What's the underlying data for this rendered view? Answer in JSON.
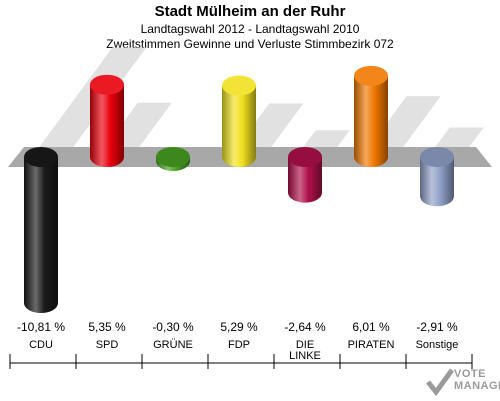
{
  "title": "Stadt Mülheim an der Ruhr",
  "subtitle1": "Landtagswahl 2012 - Landtagswahl 2010",
  "subtitle2": "Zweitstimmen Gewinne und Verluste Stimmbezirk 072",
  "logo": {
    "line1": "VOTE",
    "line2": "MANAGER"
  },
  "chart_data": {
    "type": "bar",
    "title": "Stadt Mülheim an der Ruhr",
    "categories": [
      "CDU",
      "SPD",
      "GRÜNE",
      "FDP",
      "DIE LINKE",
      "PIRATEN",
      "Sonstige"
    ],
    "values": [
      -10.81,
      5.35,
      -0.3,
      5.29,
      -2.64,
      6.01,
      -2.91
    ],
    "value_labels": [
      "-10,81 %",
      "5,35 %",
      "-0,30 %",
      "5,29 %",
      "-2,64 %",
      "6,01 %",
      "-2,91 %"
    ],
    "colors": [
      "#1a1a1a",
      "#e8000a",
      "#46a022",
      "#f0e020",
      "#b0104a",
      "#f07800",
      "#90a0c8"
    ],
    "unit": "%",
    "ylim": [
      -10.81,
      6.01
    ],
    "grid": false,
    "legend": "none"
  }
}
